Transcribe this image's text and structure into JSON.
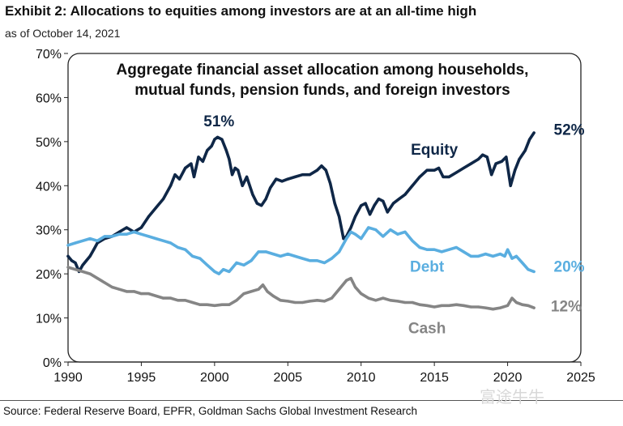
{
  "title": "Exhibit 2: Allocations to equities among investors are at an all-time high",
  "subtitle": "as of October 14, 2021",
  "source": "Source: Federal Reserve Board, EPFR, Goldman Sachs Global Investment Research",
  "watermark": "富途牛牛",
  "chart_data": {
    "type": "line",
    "title_lines": [
      "Aggregate financial asset allocation among households,",
      "mutual funds, pension funds, and foreign investors"
    ],
    "xlim": [
      1990,
      2025
    ],
    "ylim": [
      0,
      70
    ],
    "x_ticks": [
      1990,
      1995,
      2000,
      2005,
      2010,
      2015,
      2020,
      2025
    ],
    "y_ticks": [
      0,
      10,
      20,
      30,
      40,
      50,
      60,
      70
    ],
    "y_tick_labels": [
      "0%",
      "10%",
      "20%",
      "30%",
      "40%",
      "50%",
      "60%",
      "70%"
    ],
    "grid": false,
    "series": [
      {
        "name": "Equity",
        "color": "#0f2747",
        "points": [
          [
            1990.0,
            24
          ],
          [
            1990.25,
            23
          ],
          [
            1990.5,
            22.5
          ],
          [
            1990.75,
            20.5
          ],
          [
            1991.0,
            22
          ],
          [
            1991.25,
            23
          ],
          [
            1991.5,
            24
          ],
          [
            1991.75,
            25.5
          ],
          [
            1992.0,
            27
          ],
          [
            1992.5,
            28
          ],
          [
            1993.0,
            28.5
          ],
          [
            1993.5,
            29.5
          ],
          [
            1994.0,
            30.5
          ],
          [
            1994.5,
            29.5
          ],
          [
            1995.0,
            30.5
          ],
          [
            1995.5,
            33
          ],
          [
            1996.0,
            35
          ],
          [
            1996.5,
            37
          ],
          [
            1997.0,
            40
          ],
          [
            1997.3,
            42.5
          ],
          [
            1997.6,
            41.5
          ],
          [
            1998.0,
            44
          ],
          [
            1998.4,
            45
          ],
          [
            1998.6,
            42
          ],
          [
            1998.9,
            46.5
          ],
          [
            1999.2,
            45.5
          ],
          [
            1999.5,
            48
          ],
          [
            1999.8,
            49
          ],
          [
            2000.0,
            50.5
          ],
          [
            2000.2,
            51
          ],
          [
            2000.5,
            50.5
          ],
          [
            2000.8,
            48
          ],
          [
            2001.0,
            46
          ],
          [
            2001.2,
            42.5
          ],
          [
            2001.4,
            44
          ],
          [
            2001.6,
            43.5
          ],
          [
            2001.9,
            40
          ],
          [
            2002.2,
            42
          ],
          [
            2002.6,
            38
          ],
          [
            2002.9,
            36
          ],
          [
            2003.2,
            35.5
          ],
          [
            2003.5,
            37
          ],
          [
            2003.8,
            39.5
          ],
          [
            2004.2,
            41.5
          ],
          [
            2004.6,
            41
          ],
          [
            2005.0,
            41.5
          ],
          [
            2005.5,
            42
          ],
          [
            2006.0,
            42.5
          ],
          [
            2006.5,
            42.5
          ],
          [
            2007.0,
            43.5
          ],
          [
            2007.3,
            44.5
          ],
          [
            2007.6,
            43.5
          ],
          [
            2007.9,
            40.5
          ],
          [
            2008.2,
            36
          ],
          [
            2008.5,
            33
          ],
          [
            2008.8,
            28
          ],
          [
            2009.0,
            28.5
          ],
          [
            2009.3,
            30.5
          ],
          [
            2009.6,
            33
          ],
          [
            2010.0,
            35.5
          ],
          [
            2010.3,
            36
          ],
          [
            2010.6,
            33.5
          ],
          [
            2010.9,
            35.5
          ],
          [
            2011.2,
            37
          ],
          [
            2011.5,
            36.5
          ],
          [
            2011.8,
            34
          ],
          [
            2012.2,
            36
          ],
          [
            2012.6,
            37
          ],
          [
            2013.0,
            38
          ],
          [
            2013.5,
            40
          ],
          [
            2014.0,
            42
          ],
          [
            2014.5,
            43.5
          ],
          [
            2015.0,
            43.5
          ],
          [
            2015.3,
            44
          ],
          [
            2015.6,
            42
          ],
          [
            2016.0,
            42
          ],
          [
            2016.5,
            43
          ],
          [
            2017.0,
            44
          ],
          [
            2017.5,
            45
          ],
          [
            2018.0,
            46
          ],
          [
            2018.3,
            47
          ],
          [
            2018.6,
            46.5
          ],
          [
            2018.9,
            42.5
          ],
          [
            2019.2,
            45
          ],
          [
            2019.6,
            45.5
          ],
          [
            2019.9,
            46.5
          ],
          [
            2020.2,
            40
          ],
          [
            2020.5,
            43.5
          ],
          [
            2020.8,
            46
          ],
          [
            2021.2,
            48
          ],
          [
            2021.5,
            50.5
          ],
          [
            2021.8,
            52
          ]
        ]
      },
      {
        "name": "Debt",
        "color": "#5aaee0",
        "points": [
          [
            1990.0,
            26.5
          ],
          [
            1990.5,
            27
          ],
          [
            1991.0,
            27.5
          ],
          [
            1991.5,
            28
          ],
          [
            1992.0,
            27.5
          ],
          [
            1992.5,
            28.5
          ],
          [
            1993.0,
            28.5
          ],
          [
            1993.5,
            29
          ],
          [
            1994.0,
            29
          ],
          [
            1994.5,
            29.5
          ],
          [
            1995.0,
            29
          ],
          [
            1995.5,
            28.5
          ],
          [
            1996.0,
            28
          ],
          [
            1996.5,
            27.5
          ],
          [
            1997.0,
            27
          ],
          [
            1997.5,
            26
          ],
          [
            1998.0,
            25.5
          ],
          [
            1998.5,
            24
          ],
          [
            1999.0,
            23.5
          ],
          [
            1999.5,
            22
          ],
          [
            2000.0,
            20.5
          ],
          [
            2000.3,
            20
          ],
          [
            2000.6,
            21
          ],
          [
            2001.0,
            20.5
          ],
          [
            2001.5,
            22.5
          ],
          [
            2002.0,
            22
          ],
          [
            2002.5,
            23
          ],
          [
            2003.0,
            25
          ],
          [
            2003.5,
            25
          ],
          [
            2004.0,
            24.5
          ],
          [
            2004.5,
            24
          ],
          [
            2005.0,
            24.5
          ],
          [
            2005.5,
            24
          ],
          [
            2006.0,
            23.5
          ],
          [
            2006.5,
            23
          ],
          [
            2007.0,
            23
          ],
          [
            2007.5,
            22.5
          ],
          [
            2008.0,
            23.5
          ],
          [
            2008.5,
            25
          ],
          [
            2009.0,
            28
          ],
          [
            2009.3,
            29.5
          ],
          [
            2009.6,
            29
          ],
          [
            2010.0,
            28
          ],
          [
            2010.5,
            30.5
          ],
          [
            2011.0,
            30
          ],
          [
            2011.5,
            28.5
          ],
          [
            2012.0,
            30
          ],
          [
            2012.5,
            29
          ],
          [
            2013.0,
            29.5
          ],
          [
            2013.5,
            27.5
          ],
          [
            2014.0,
            26
          ],
          [
            2014.5,
            25.5
          ],
          [
            2015.0,
            25.5
          ],
          [
            2015.5,
            25
          ],
          [
            2016.0,
            25.5
          ],
          [
            2016.5,
            26
          ],
          [
            2017.0,
            25
          ],
          [
            2017.5,
            24
          ],
          [
            2018.0,
            24
          ],
          [
            2018.5,
            24.5
          ],
          [
            2019.0,
            24
          ],
          [
            2019.5,
            24.5
          ],
          [
            2019.8,
            24
          ],
          [
            2020.0,
            25.5
          ],
          [
            2020.3,
            23.5
          ],
          [
            2020.6,
            24
          ],
          [
            2021.0,
            22.5
          ],
          [
            2021.4,
            21
          ],
          [
            2021.8,
            20.5
          ]
        ]
      },
      {
        "name": "Cash",
        "color": "#858585",
        "points": [
          [
            1990.0,
            21.5
          ],
          [
            1990.5,
            21
          ],
          [
            1991.0,
            20.5
          ],
          [
            1991.5,
            20
          ],
          [
            1992.0,
            19
          ],
          [
            1992.5,
            18
          ],
          [
            1993.0,
            17
          ],
          [
            1993.5,
            16.5
          ],
          [
            1994.0,
            16
          ],
          [
            1994.5,
            16
          ],
          [
            1995.0,
            15.5
          ],
          [
            1995.5,
            15.5
          ],
          [
            1996.0,
            15
          ],
          [
            1996.5,
            14.5
          ],
          [
            1997.0,
            14.5
          ],
          [
            1997.5,
            14
          ],
          [
            1998.0,
            14
          ],
          [
            1998.5,
            13.5
          ],
          [
            1999.0,
            13
          ],
          [
            1999.5,
            13
          ],
          [
            2000.0,
            12.8
          ],
          [
            2000.5,
            13
          ],
          [
            2001.0,
            13
          ],
          [
            2001.5,
            14
          ],
          [
            2002.0,
            15.5
          ],
          [
            2002.5,
            16
          ],
          [
            2003.0,
            16.5
          ],
          [
            2003.3,
            17.5
          ],
          [
            2003.6,
            16
          ],
          [
            2004.0,
            15
          ],
          [
            2004.5,
            14
          ],
          [
            2005.0,
            13.8
          ],
          [
            2005.5,
            13.5
          ],
          [
            2006.0,
            13.5
          ],
          [
            2006.5,
            13.8
          ],
          [
            2007.0,
            14
          ],
          [
            2007.5,
            13.8
          ],
          [
            2008.0,
            14.5
          ],
          [
            2008.5,
            16.5
          ],
          [
            2009.0,
            18.5
          ],
          [
            2009.3,
            19
          ],
          [
            2009.6,
            17
          ],
          [
            2010.0,
            15.5
          ],
          [
            2010.5,
            14.5
          ],
          [
            2011.0,
            14
          ],
          [
            2011.5,
            14.5
          ],
          [
            2012.0,
            14
          ],
          [
            2012.5,
            13.8
          ],
          [
            2013.0,
            13.5
          ],
          [
            2013.5,
            13.5
          ],
          [
            2014.0,
            13
          ],
          [
            2014.5,
            12.8
          ],
          [
            2015.0,
            12.5
          ],
          [
            2015.5,
            12.8
          ],
          [
            2016.0,
            12.8
          ],
          [
            2016.5,
            13
          ],
          [
            2017.0,
            12.8
          ],
          [
            2017.5,
            12.5
          ],
          [
            2018.0,
            12.5
          ],
          [
            2018.5,
            12.3
          ],
          [
            2019.0,
            12
          ],
          [
            2019.5,
            12.3
          ],
          [
            2020.0,
            12.8
          ],
          [
            2020.3,
            14.5
          ],
          [
            2020.6,
            13.5
          ],
          [
            2021.0,
            13
          ],
          [
            2021.4,
            12.8
          ],
          [
            2021.8,
            12.3
          ]
        ]
      }
    ],
    "annotations": [
      {
        "text": "51%",
        "x": 2000.3,
        "y": 53.5,
        "color": "#0f2747"
      },
      {
        "text": "52%",
        "x": 2024.2,
        "y": 51.5,
        "color": "#0f2747"
      },
      {
        "text": "20%",
        "x": 2024.2,
        "y": 20.5,
        "color": "#5aaee0"
      },
      {
        "text": "12%",
        "x": 2024.0,
        "y": 11.5,
        "color": "#858585"
      },
      {
        "text": "Equity",
        "x": 2015.0,
        "y": 47,
        "color": "#0f2747"
      },
      {
        "text": "Debt",
        "x": 2014.5,
        "y": 20.5,
        "color": "#5aaee0"
      },
      {
        "text": "Cash",
        "x": 2014.5,
        "y": 6.5,
        "color": "#858585"
      }
    ]
  }
}
